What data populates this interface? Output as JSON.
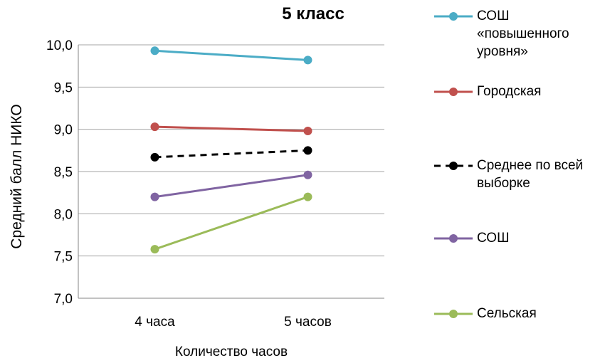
{
  "chart_data": {
    "type": "line",
    "title": "5 класс",
    "xlabel": "Количество часов",
    "ylabel": "Средний балл НИКО",
    "categories": [
      "4 часа",
      "5 часов"
    ],
    "ylim": [
      7.0,
      10.0
    ],
    "yticks": [
      "7,0",
      "7,5",
      "8,0",
      "8,5",
      "9,0",
      "9,5",
      "10,0"
    ],
    "ytick_values": [
      7.0,
      7.5,
      8.0,
      8.5,
      9.0,
      9.5,
      10.0
    ],
    "grid": true,
    "legend_position": "right",
    "series": [
      {
        "name": "СОШ «повышенного уровня»",
        "values": [
          9.93,
          9.82
        ],
        "color": "#4BACC6",
        "dashed": false
      },
      {
        "name": "Городская",
        "values": [
          9.03,
          8.98
        ],
        "color": "#C0504D",
        "dashed": false
      },
      {
        "name": "Среднее по всей выборке",
        "values": [
          8.67,
          8.75
        ],
        "color": "#000000",
        "dashed": true
      },
      {
        "name": "СОШ",
        "values": [
          8.2,
          8.46
        ],
        "color": "#8064A2",
        "dashed": false
      },
      {
        "name": "Сельская",
        "values": [
          7.58,
          8.2
        ],
        "color": "#9BBB59",
        "dashed": false
      }
    ]
  }
}
